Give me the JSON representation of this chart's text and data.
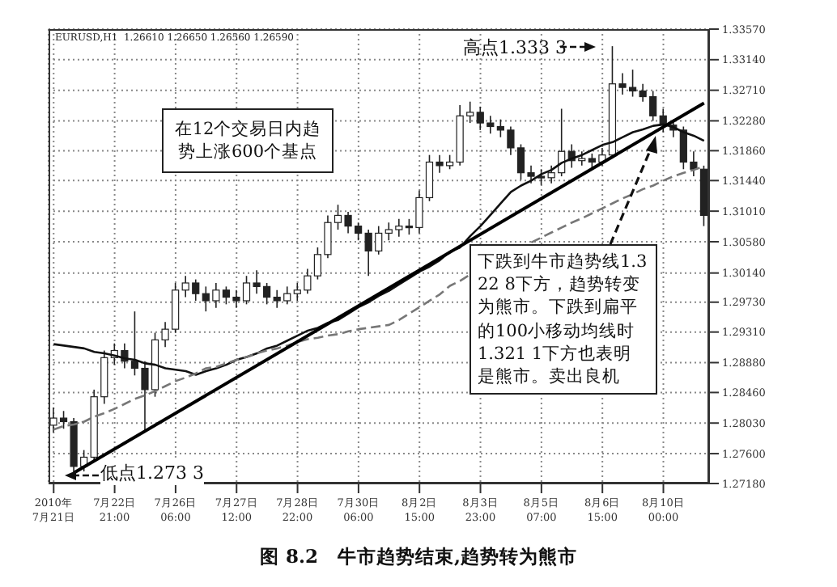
{
  "chart_data": {
    "type": "candlestick",
    "title": "图 8.2　牛市趋势结束,趋势转为熊市",
    "annotations": [
      "EURUSD,H1  1.26610 1.26650 1.26560 1.26590",
      "在12个交易日内趋势上涨600个基点",
      "高点1.333 3",
      "低点1.273 3",
      "下跌到牛市趋势线1.322 8下方，趋势转变为熊市。下跌到扁平的100小移动均线时1.321 1下方也表明是熊市。卖出良机"
    ],
    "categories": [
      "2010年\n7月21日",
      null,
      null,
      null,
      null,
      null,
      "7月22日\n21:00",
      null,
      null,
      null,
      null,
      null,
      "7月26日\n06:00",
      null,
      null,
      null,
      null,
      null,
      "7月27日\n12:00",
      null,
      null,
      null,
      null,
      null,
      "7月28日\n22:00",
      null,
      null,
      null,
      null,
      null,
      "7月30日\n06:00",
      null,
      null,
      null,
      null,
      null,
      "8月2日\n15:00",
      null,
      null,
      null,
      null,
      null,
      "8月3日\n23:00",
      null,
      null,
      null,
      null,
      null,
      "8月5日\n07:00",
      null,
      null,
      null,
      null,
      null,
      "8月6日\n15:00",
      null,
      null,
      null,
      null,
      null,
      "8月10日\n00:00",
      null,
      null,
      null,
      null
    ],
    "color": "#222222",
    "ohlc": [
      [
        1.28,
        1.2825,
        1.279,
        1.281
      ],
      [
        1.281,
        1.282,
        1.2795,
        1.2805
      ],
      [
        1.2805,
        1.281,
        1.2733,
        1.2742
      ],
      [
        1.2742,
        1.2765,
        1.2735,
        1.2755
      ],
      [
        1.2755,
        1.285,
        1.275,
        1.284
      ],
      [
        1.284,
        1.2905,
        1.283,
        1.2895
      ],
      [
        1.2895,
        1.2915,
        1.2885,
        1.2905
      ],
      [
        1.2905,
        1.2915,
        1.288,
        1.289
      ],
      [
        1.289,
        1.296,
        1.287,
        1.288
      ],
      [
        1.288,
        1.289,
        1.279,
        1.285
      ],
      [
        1.285,
        1.293,
        1.284,
        1.292
      ],
      [
        1.292,
        1.2945,
        1.291,
        1.2935
      ],
      [
        1.2935,
        1.3,
        1.293,
        1.299
      ],
      [
        1.299,
        1.301,
        1.298,
        1.3
      ],
      [
        1.3,
        1.3005,
        1.2975,
        1.2985
      ],
      [
        1.2985,
        1.2995,
        1.296,
        1.2975
      ],
      [
        1.2975,
        1.3,
        1.2965,
        1.299
      ],
      [
        1.299,
        1.2995,
        1.297,
        1.298
      ],
      [
        1.298,
        1.299,
        1.2965,
        1.2975
      ],
      [
        1.2975,
        1.301,
        1.297,
        1.3
      ],
      [
        1.3,
        1.3018,
        1.2985,
        1.2995
      ],
      [
        1.2995,
        1.3,
        1.297,
        1.298
      ],
      [
        1.298,
        1.299,
        1.2965,
        1.2975
      ],
      [
        1.2975,
        1.2995,
        1.297,
        1.2985
      ],
      [
        1.2985,
        1.3,
        1.2975,
        1.299
      ],
      [
        1.299,
        1.302,
        1.2985,
        1.301
      ],
      [
        1.301,
        1.305,
        1.3005,
        1.304
      ],
      [
        1.304,
        1.3095,
        1.3035,
        1.3085
      ],
      [
        1.3085,
        1.311,
        1.3075,
        1.3095
      ],
      [
        1.3095,
        1.31,
        1.307,
        1.308
      ],
      [
        1.308,
        1.3085,
        1.306,
        1.307
      ],
      [
        1.307,
        1.3075,
        1.301,
        1.3045
      ],
      [
        1.3045,
        1.308,
        1.304,
        1.307
      ],
      [
        1.307,
        1.3085,
        1.306,
        1.3075
      ],
      [
        1.3075,
        1.309,
        1.3065,
        1.308
      ],
      [
        1.308,
        1.309,
        1.3068,
        1.3078
      ],
      [
        1.3078,
        1.313,
        1.307,
        1.312
      ],
      [
        1.312,
        1.318,
        1.3115,
        1.317
      ],
      [
        1.317,
        1.318,
        1.3155,
        1.3165
      ],
      [
        1.3165,
        1.318,
        1.316,
        1.317
      ],
      [
        1.317,
        1.325,
        1.3165,
        1.3235
      ],
      [
        1.3235,
        1.3255,
        1.3225,
        1.324
      ],
      [
        1.324,
        1.3248,
        1.3215,
        1.3225
      ],
      [
        1.3225,
        1.3235,
        1.321,
        1.322
      ],
      [
        1.322,
        1.323,
        1.3205,
        1.3215
      ],
      [
        1.3215,
        1.322,
        1.318,
        1.319
      ],
      [
        1.319,
        1.3195,
        1.3145,
        1.3155
      ],
      [
        1.3155,
        1.3165,
        1.314,
        1.315
      ],
      [
        1.315,
        1.316,
        1.3138,
        1.3148
      ],
      [
        1.3148,
        1.3165,
        1.314,
        1.3155
      ],
      [
        1.3155,
        1.3245,
        1.315,
        1.3185
      ],
      [
        1.3185,
        1.3195,
        1.3162,
        1.3172
      ],
      [
        1.3172,
        1.3185,
        1.3165,
        1.3175
      ],
      [
        1.3175,
        1.3182,
        1.316,
        1.317
      ],
      [
        1.317,
        1.319,
        1.3165,
        1.318
      ],
      [
        1.318,
        1.3333,
        1.3175,
        1.328
      ],
      [
        1.328,
        1.3295,
        1.3265,
        1.3275
      ],
      [
        1.3275,
        1.33,
        1.3262,
        1.327
      ],
      [
        1.327,
        1.328,
        1.3255,
        1.3262
      ],
      [
        1.3262,
        1.327,
        1.3228,
        1.3235
      ],
      [
        1.3235,
        1.3245,
        1.3212,
        1.3222
      ],
      [
        1.3222,
        1.323,
        1.3205,
        1.3215
      ],
      [
        1.3215,
        1.322,
        1.316,
        1.317
      ],
      [
        1.317,
        1.3185,
        1.315,
        1.316
      ],
      [
        1.316,
        1.3165,
        1.308,
        1.3095
      ]
    ],
    "series": [
      {
        "type": "line",
        "color": "#111111",
        "line_style": "solid",
        "values": [
          1.2914,
          1.2912,
          1.291,
          1.2908,
          1.2903,
          1.2901,
          1.2898,
          1.2894,
          1.2892,
          1.2887,
          1.2885,
          1.288,
          1.2878,
          1.2876,
          1.2871,
          1.2876,
          1.288,
          1.2885,
          1.2892,
          1.2896,
          1.2901,
          1.2908,
          1.2912,
          1.2919,
          1.2926,
          1.2933,
          1.2937,
          1.2944,
          1.2948,
          1.2957,
          1.2966,
          1.2973,
          1.2982,
          1.2989,
          1.2998,
          1.3007,
          1.3016,
          1.3023,
          1.3032,
          1.3044,
          1.305,
          1.3066,
          1.308,
          1.3096,
          1.3112,
          1.3128,
          1.3137,
          1.3144,
          1.3153,
          1.3159,
          1.3169,
          1.3175,
          1.318,
          1.3187,
          1.3194,
          1.3198,
          1.3205,
          1.3212,
          1.3216,
          1.3221,
          1.3223,
          1.3219,
          1.3212,
          1.3207,
          1.32
        ]
      },
      {
        "type": "line",
        "color": "#777777",
        "line_style": "dashed",
        "values": [
          1.2794,
          1.2799,
          1.2801,
          1.2805,
          1.2812,
          1.2817,
          1.2823,
          1.283,
          1.2837,
          1.2842,
          1.2848,
          1.2855,
          1.2862,
          1.2867,
          1.2873,
          1.288,
          1.2882,
          1.2887,
          1.2892,
          1.2896,
          1.2901,
          1.2905,
          1.2908,
          1.2912,
          1.2917,
          1.2921,
          1.2923,
          1.2926,
          1.2928,
          1.2932,
          1.2935,
          1.2937,
          1.2939,
          1.2941,
          1.2948,
          1.2957,
          1.2966,
          1.2975,
          1.2984,
          1.2996,
          1.3003,
          1.3012,
          null,
          null,
          null,
          null,
          null,
          1.3057,
          1.3064,
          1.3071,
          1.3078,
          1.3085,
          1.3091,
          1.3098,
          1.3105,
          1.3112,
          1.3119,
          1.3125,
          1.3132,
          1.3137,
          1.3144,
          1.315,
          1.3155,
          1.3159,
          1.3164
        ]
      },
      {
        "type": "line",
        "color": "#000000",
        "line_style": "solid",
        "values": [
          null,
          null,
          1.2733,
          null,
          null,
          null,
          null,
          null,
          null,
          null,
          null,
          null,
          null,
          null,
          null,
          null,
          null,
          null,
          null,
          null,
          null,
          null,
          null,
          null,
          null,
          null,
          null,
          null,
          null,
          null,
          null,
          null,
          null,
          null,
          null,
          null,
          null,
          null,
          null,
          null,
          null,
          null,
          null,
          null,
          null,
          null,
          null,
          null,
          null,
          null,
          null,
          null,
          null,
          null,
          null,
          null,
          null,
          null,
          null,
          null,
          null,
          null,
          null,
          null,
          1.3253
        ]
      }
    ],
    "ylim": [
      1.2718,
      1.3357
    ],
    "yticks": [
      {
        "value": 1.3357,
        "label": "1.33570"
      },
      {
        "value": 1.3314,
        "label": "1.33140"
      },
      {
        "value": 1.3271,
        "label": "1.32710"
      },
      {
        "value": 1.3228,
        "label": "1.32280"
      },
      {
        "value": 1.3186,
        "label": "1.31860"
      },
      {
        "value": 1.3144,
        "label": "1.31440"
      },
      {
        "value": 1.3101,
        "label": "1.31010"
      },
      {
        "value": 1.3058,
        "label": "1.30580"
      },
      {
        "value": 1.3014,
        "label": "1.30140"
      },
      {
        "value": 1.2973,
        "label": "1.29730"
      },
      {
        "value": 1.2931,
        "label": "1.29310"
      },
      {
        "value": 1.2888,
        "label": "1.28880"
      },
      {
        "value": 1.2846,
        "label": "1.28460"
      },
      {
        "value": 1.2803,
        "label": "1.28030"
      },
      {
        "value": 1.276,
        "label": "1.27600"
      },
      {
        "value": 1.2718,
        "label": "1.27180"
      }
    ],
    "grid": true
  }
}
